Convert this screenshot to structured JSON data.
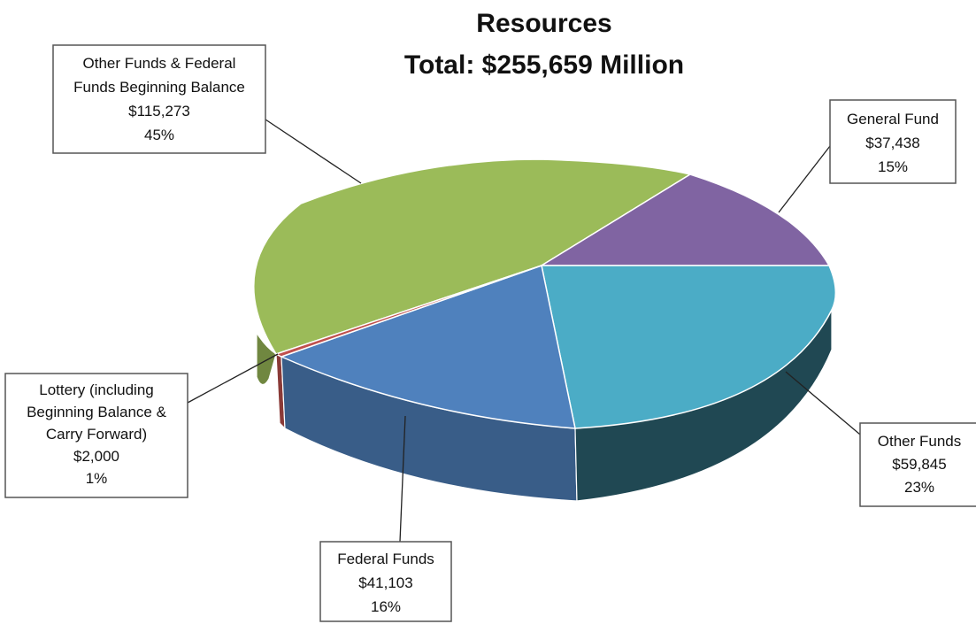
{
  "chart_data": {
    "type": "pie",
    "title": "Resources",
    "subtitle": "Total: $255,659 Million",
    "slices": [
      {
        "key": "green",
        "label_lines": [
          "Other Funds & Federal",
          "Funds Beginning Balance"
        ],
        "value_text": "$115,273",
        "percent_text": "45%",
        "value": 115273,
        "color": "#9bbb59"
      },
      {
        "key": "purple",
        "label_lines": [
          "General Fund"
        ],
        "value_text": "$37,438",
        "percent_text": "15%",
        "value": 37438,
        "color": "#8064a2"
      },
      {
        "key": "cyan",
        "label_lines": [
          "Other Funds"
        ],
        "value_text": "$59,845",
        "percent_text": "23%",
        "value": 59845,
        "color": "#4bacc6"
      },
      {
        "key": "blue",
        "label_lines": [
          "Federal Funds"
        ],
        "value_text": "$41,103",
        "percent_text": "16%",
        "value": 41103,
        "color": "#4f81bd"
      },
      {
        "key": "red",
        "label_lines": [
          "Lottery (including",
          "Beginning Balance &",
          "Carry Forward)"
        ],
        "value_text": "$2,000",
        "percent_text": "1%",
        "value": 2000,
        "color": "#c0504d"
      }
    ]
  }
}
